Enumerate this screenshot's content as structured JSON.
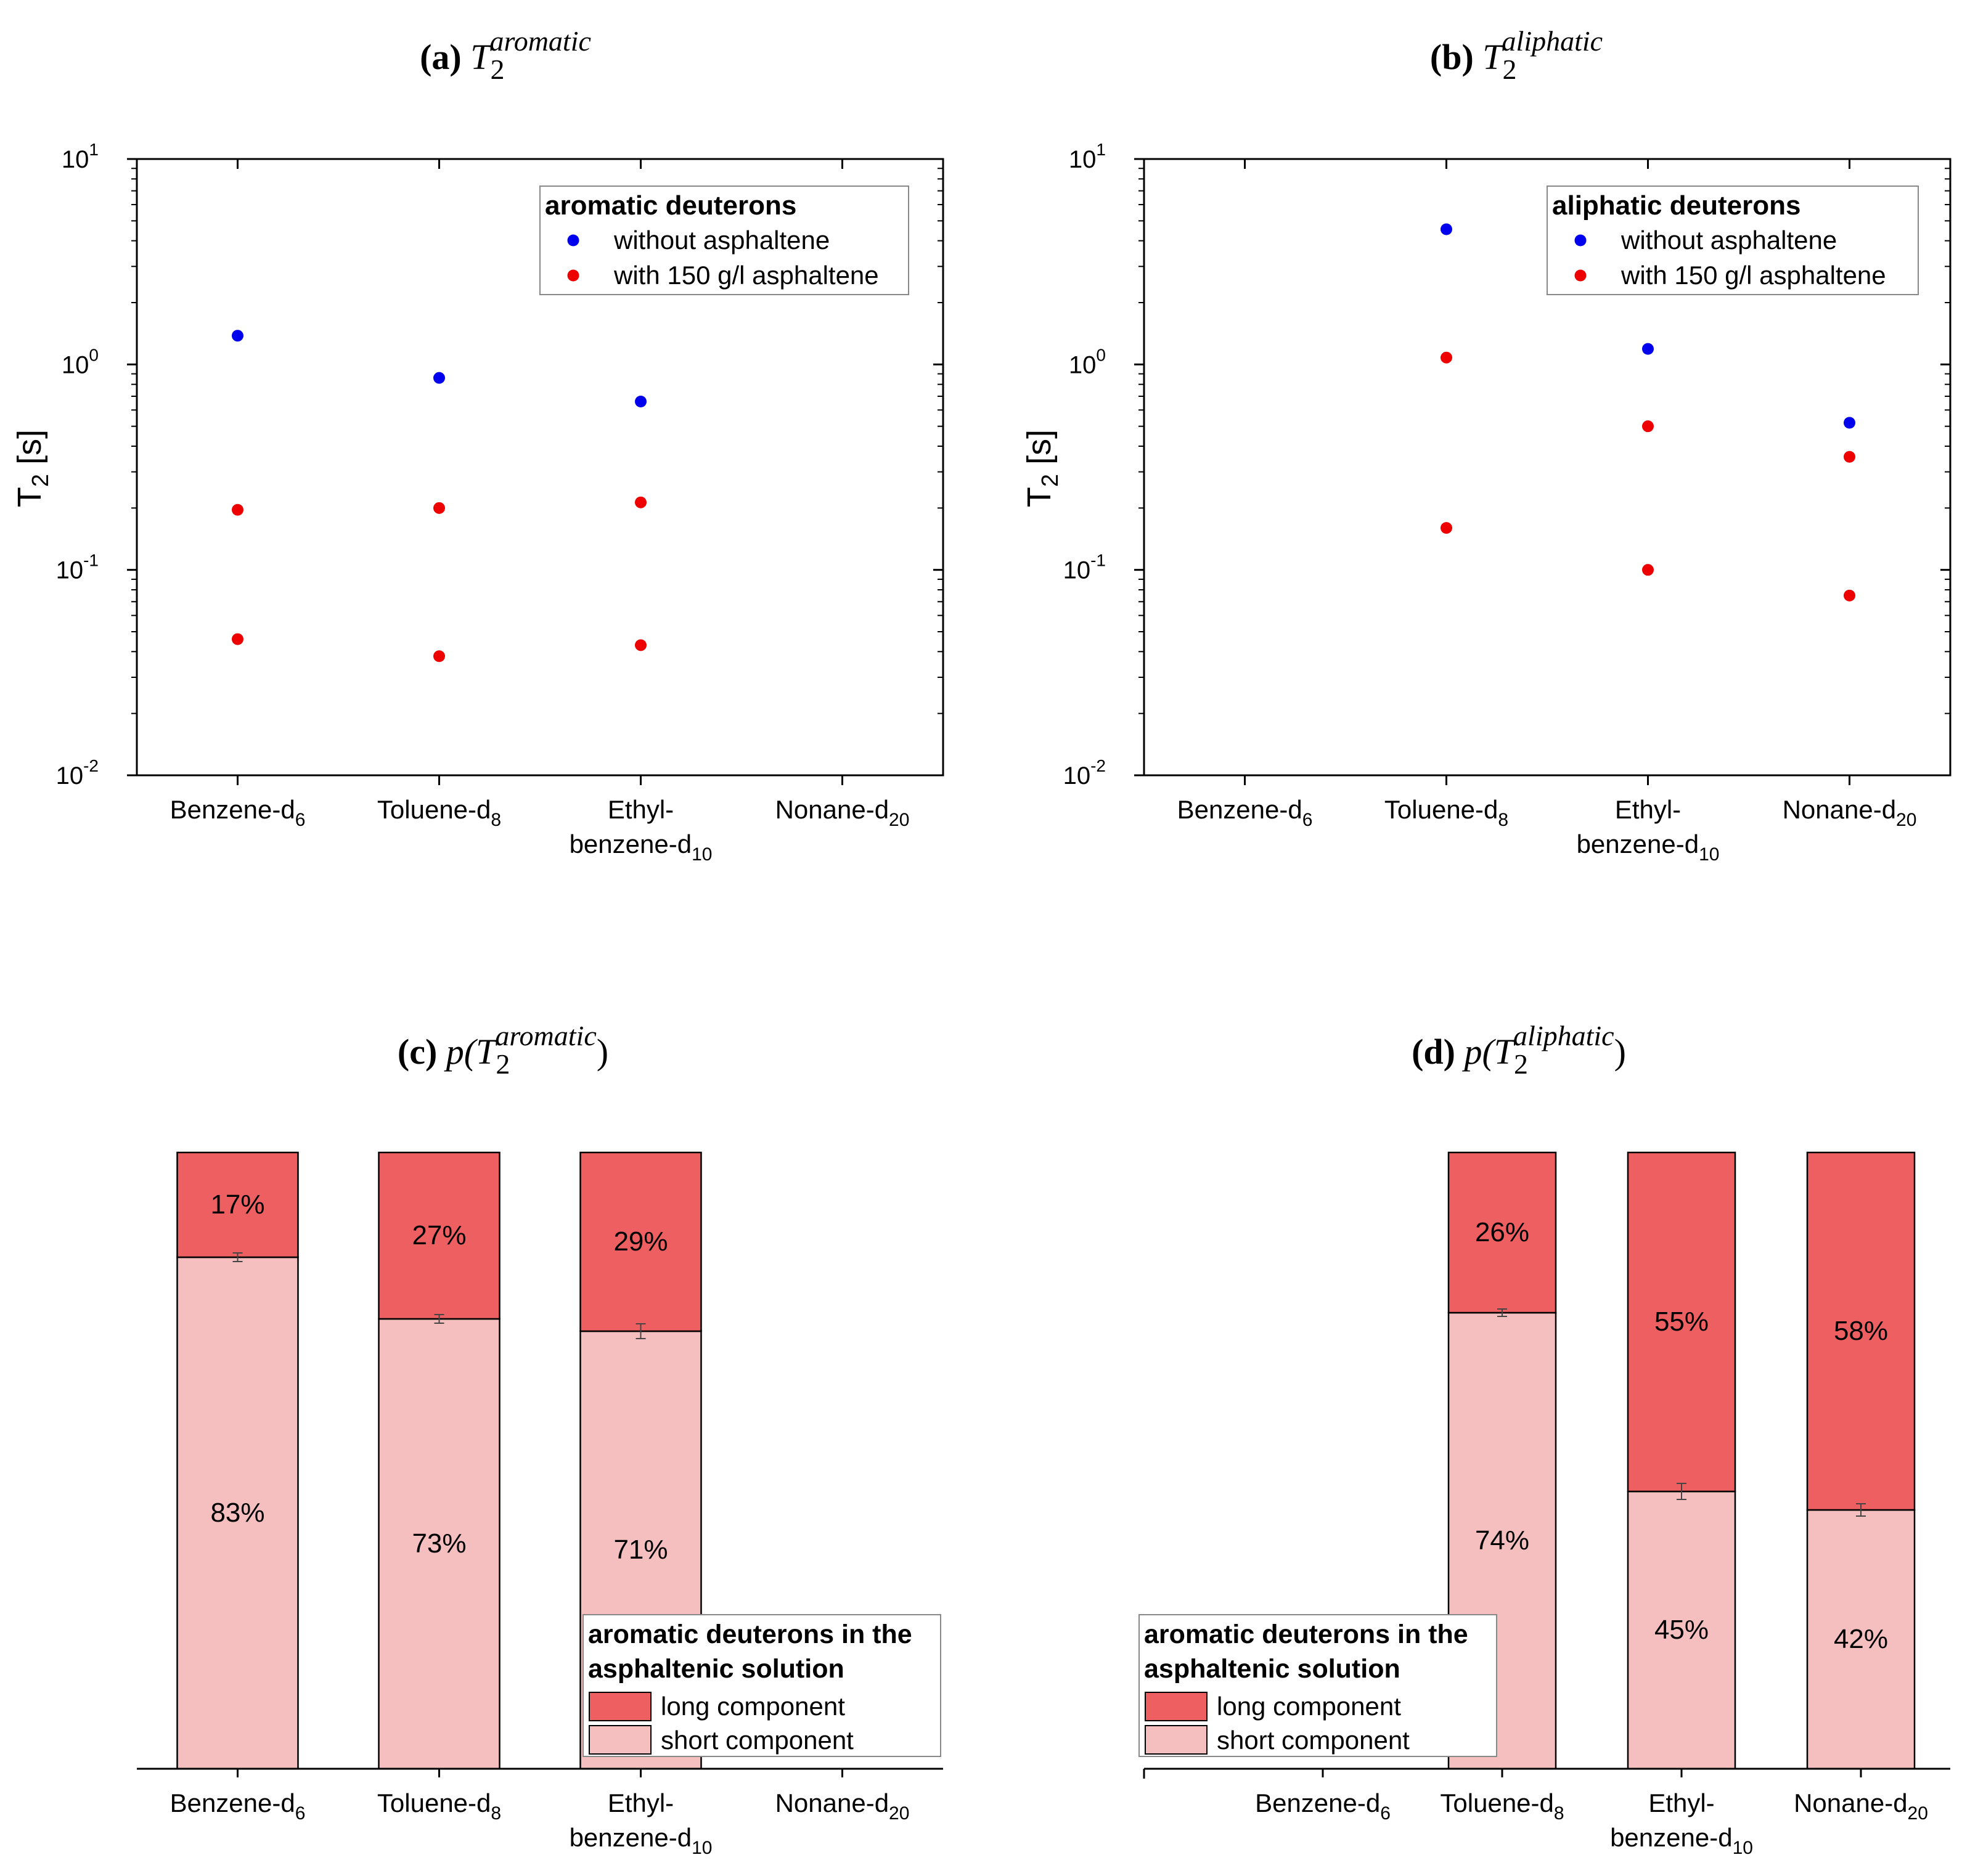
{
  "colors": {
    "blue": "#0000ee",
    "red": "#ee0000",
    "long_fill": "#ed5f61",
    "short_fill": "#f5bfbf",
    "axis": "#000000"
  },
  "categories_a": [
    "Benzene-d",
    "Toluene-d",
    "Ethyl-",
    "Nonane-d"
  ],
  "chart_data": [
    {
      "id": "a",
      "type": "scatter",
      "title": {
        "letter": "(a)",
        "symbol": "T",
        "sub": "2",
        "sup": "aromatic",
        "prefix": "",
        "suffix": ""
      },
      "ylabel": {
        "main": "T",
        "sub": "2",
        "rest": " [s]"
      },
      "yscale": "log",
      "ylim": [
        0.01,
        10
      ],
      "ticks": [
        {
          "base": "10",
          "exp": "-2",
          "value": 0.01
        },
        {
          "base": "10",
          "exp": "-1",
          "value": 0.1
        },
        {
          "base": "10",
          "exp": "0",
          "value": 1
        },
        {
          "base": "10",
          "exp": "1",
          "value": 10
        }
      ],
      "categories": [
        {
          "line1": "Benzene-d",
          "sub1": "6",
          "line2": "",
          "sub2": ""
        },
        {
          "line1": "Toluene-d",
          "sub1": "8",
          "line2": "",
          "sub2": ""
        },
        {
          "line1": "Ethyl-",
          "sub1": "",
          "line2": "benzene-d",
          "sub2": "10"
        },
        {
          "line1": "Nonane-d",
          "sub1": "20",
          "line2": "",
          "sub2": ""
        }
      ],
      "legend": {
        "title": "aromatic deuterons",
        "items": [
          "without asphaltene",
          "with 150 g/l asphaltene"
        ],
        "placement": "top-right"
      },
      "series": [
        {
          "name": "without asphaltene",
          "color": "blue",
          "points": [
            [
              0,
              1.38
            ],
            [
              1,
              0.86
            ],
            [
              2,
              0.66
            ]
          ]
        },
        {
          "name": "with 150 g/l asphaltene",
          "color": "red",
          "points": [
            [
              0,
              0.196
            ],
            [
              1,
              0.2
            ],
            [
              2,
              0.213
            ],
            [
              0,
              0.046
            ],
            [
              1,
              0.038
            ],
            [
              2,
              0.043
            ]
          ]
        }
      ]
    },
    {
      "id": "b",
      "type": "scatter",
      "title": {
        "letter": "(b)",
        "symbol": "T",
        "sub": "2",
        "sup": "aliphatic",
        "prefix": "",
        "suffix": ""
      },
      "ylabel": {
        "main": "T",
        "sub": "2",
        "rest": " [s]"
      },
      "yscale": "log",
      "ylim": [
        0.01,
        10
      ],
      "ticks": [
        {
          "base": "10",
          "exp": "-2",
          "value": 0.01
        },
        {
          "base": "10",
          "exp": "-1",
          "value": 0.1
        },
        {
          "base": "10",
          "exp": "0",
          "value": 1
        },
        {
          "base": "10",
          "exp": "1",
          "value": 10
        }
      ],
      "categories": [
        {
          "line1": "Benzene-d",
          "sub1": "6",
          "line2": "",
          "sub2": ""
        },
        {
          "line1": "Toluene-d",
          "sub1": "8",
          "line2": "",
          "sub2": ""
        },
        {
          "line1": "Ethyl-",
          "sub1": "",
          "line2": "benzene-d",
          "sub2": "10"
        },
        {
          "line1": "Nonane-d",
          "sub1": "20",
          "line2": "",
          "sub2": ""
        }
      ],
      "legend": {
        "title": "aliphatic deuterons",
        "items": [
          "without asphaltene",
          "with 150 g/l asphaltene"
        ],
        "placement": "top-right"
      },
      "series": [
        {
          "name": "without asphaltene",
          "color": "blue",
          "points": [
            [
              1,
              4.55
            ],
            [
              2,
              1.19
            ],
            [
              3,
              0.52
            ]
          ]
        },
        {
          "name": "with 150 g/l asphaltene",
          "color": "red",
          "points": [
            [
              1,
              1.08
            ],
            [
              2,
              0.5
            ],
            [
              3,
              0.355
            ],
            [
              1,
              0.16
            ],
            [
              2,
              0.1
            ],
            [
              3,
              0.075
            ]
          ]
        }
      ]
    },
    {
      "id": "c",
      "type": "bar",
      "stacked": true,
      "title": {
        "letter": "(c)",
        "symbol": "T",
        "sub": "2",
        "sup": "aromatic",
        "prefix": "p(",
        "suffix": ")"
      },
      "ylim": [
        0,
        100
      ],
      "categories": [
        {
          "line1": "Benzene-d",
          "sub1": "6",
          "line2": "",
          "sub2": ""
        },
        {
          "line1": "Toluene-d",
          "sub1": "8",
          "line2": "",
          "sub2": ""
        },
        {
          "line1": "Ethyl-",
          "sub1": "",
          "line2": "benzene-d",
          "sub2": "10"
        },
        {
          "line1": "Nonane-d",
          "sub1": "20",
          "line2": "",
          "sub2": ""
        }
      ],
      "bars": [
        {
          "short": 83,
          "long": 17,
          "short_label": "83%",
          "long_label": "17%",
          "err": 0.7
        },
        {
          "short": 73,
          "long": 27,
          "short_label": "73%",
          "long_label": "27%",
          "err": 0.7
        },
        {
          "short": 71,
          "long": 29,
          "short_label": "71%",
          "long_label": "29%",
          "err": 1.2
        }
      ],
      "legend": {
        "title1": "aromatic deuterons in the",
        "title2": "asphaltenic solution",
        "items": [
          "long component",
          "short component"
        ],
        "placement": "bottom-right"
      }
    },
    {
      "id": "d",
      "type": "bar",
      "stacked": true,
      "title": {
        "letter": "(d)",
        "symbol": "T",
        "sub": "2",
        "sup": "aliphatic",
        "prefix": "p(",
        "suffix": ")"
      },
      "ylim": [
        0,
        100
      ],
      "categories": [
        {
          "line1": "Benzene-d",
          "sub1": "6",
          "line2": "",
          "sub2": ""
        },
        {
          "line1": "Toluene-d",
          "sub1": "8",
          "line2": "",
          "sub2": ""
        },
        {
          "line1": "Ethyl-",
          "sub1": "",
          "line2": "benzene-d",
          "sub2": "10"
        },
        {
          "line1": "Nonane-d",
          "sub1": "20",
          "line2": "",
          "sub2": ""
        }
      ],
      "bars": [
        null,
        {
          "short": 74,
          "long": 26,
          "short_label": "74%",
          "long_label": "26%",
          "err": 0.6
        },
        {
          "short": 45,
          "long": 55,
          "short_label": "45%",
          "long_label": "55%",
          "err": 1.3
        },
        {
          "short": 42,
          "long": 58,
          "short_label": "42%",
          "long_label": "58%",
          "err": 1.0
        }
      ],
      "legend": {
        "title1": "aromatic deuterons in the",
        "title2": "asphaltenic solution",
        "items": [
          "long component",
          "short component"
        ],
        "placement": "bottom-left"
      }
    }
  ]
}
